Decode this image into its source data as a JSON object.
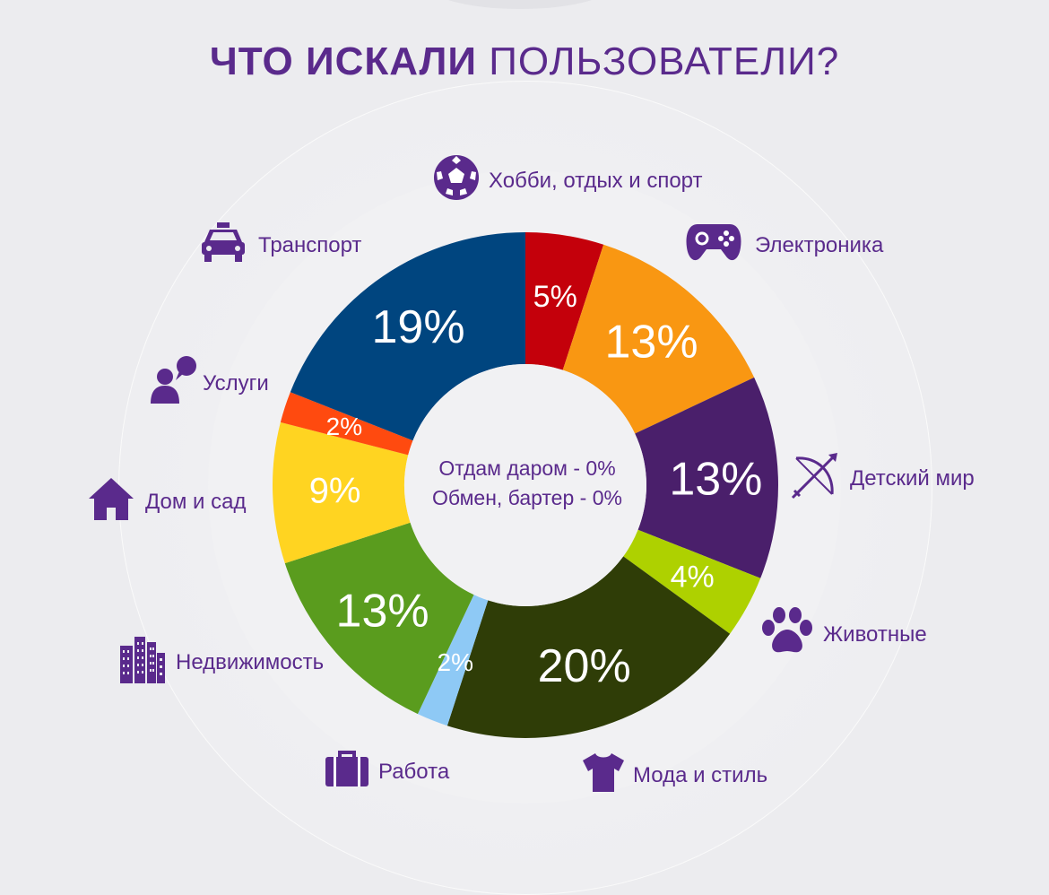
{
  "title": {
    "bold": "ЧТО ИСКАЛИ",
    "light": "ПОЛЬЗОВАТЕЛИ?"
  },
  "center": {
    "line1": "Отдам даром - 0%",
    "line2": "Обмен, бартер - 0%"
  },
  "categories": {
    "hobby": "Хобби, отдых и спорт",
    "electronics": "Электроника",
    "kids": "Детский мир",
    "animals": "Животные",
    "fashion": "Мода и стиль",
    "job": "Работа",
    "realty": "Недвижимость",
    "home": "Дом и сад",
    "services": "Услуги",
    "transport": "Транспорт"
  },
  "icons": {
    "hobby": "soccer-ball-icon",
    "electronics": "gamepad-icon",
    "kids": "bow-arrow-icon",
    "animals": "paw-icon",
    "fashion": "tshirt-icon",
    "job": "briefcase-icon",
    "realty": "buildings-icon",
    "home": "house-icon",
    "services": "chat-person-icon",
    "transport": "taxi-icon"
  },
  "colors": {
    "accent": "#5a2a8c"
  },
  "chart_data": {
    "type": "pie",
    "title": "ЧТО ИСКАЛИ ПОЛЬЗОВАТЕЛИ?",
    "slices": [
      {
        "category": "Хобби, отдых и спорт",
        "value": 5,
        "label": "5%",
        "color": "#c4000b"
      },
      {
        "category": "Электроника",
        "value": 13,
        "label": "13%",
        "color": "#f99712"
      },
      {
        "category": "Детский мир",
        "value": 13,
        "label": "13%",
        "color": "#4a1f6b"
      },
      {
        "category": "Животные",
        "value": 4,
        "label": "4%",
        "color": "#aed100"
      },
      {
        "category": "Мода и стиль",
        "value": 20,
        "label": "20%",
        "color": "#2f3d07"
      },
      {
        "category": "Работа",
        "value": 2,
        "label": "2%",
        "color": "#8ec9f5"
      },
      {
        "category": "Недвижимость",
        "value": 13,
        "label": "13%",
        "color": "#5a9c1e"
      },
      {
        "category": "Дом и сад",
        "value": 9,
        "label": "9%",
        "color": "#ffd421"
      },
      {
        "category": "Услуги",
        "value": 2,
        "label": "2%",
        "color": "#ff4a0f"
      },
      {
        "category": "Транспорт",
        "value": 19,
        "label": "19%",
        "color": "#00457f"
      }
    ],
    "extra": [
      {
        "category": "Отдам даром",
        "value": 0
      },
      {
        "category": "Обмен, бартер",
        "value": 0
      }
    ]
  }
}
